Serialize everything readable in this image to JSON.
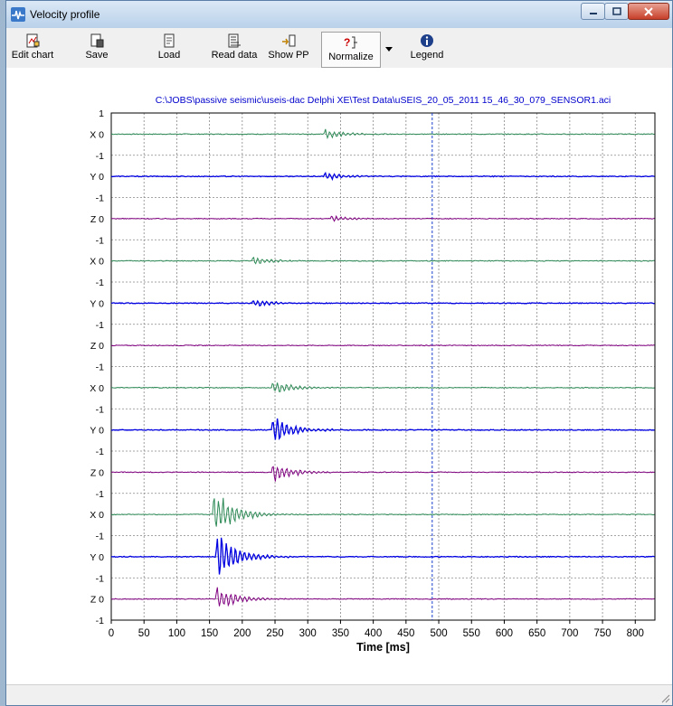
{
  "window": {
    "title": "Velocity profile"
  },
  "toolbar": {
    "buttons": [
      {
        "label": "Edit chart",
        "icon": "edit-chart-icon"
      },
      {
        "label": "Save",
        "icon": "save-icon"
      },
      {
        "label": "Load",
        "icon": "load-icon"
      },
      {
        "label": "Read data",
        "icon": "read-data-icon"
      },
      {
        "label": "Show PP",
        "icon": "show-pp-icon"
      },
      {
        "label": "Normalize",
        "icon": "normalize-icon",
        "pressed": true
      },
      {
        "label": "Legend",
        "icon": "info-icon"
      }
    ]
  },
  "chart_data": {
    "type": "line",
    "title": "C:\\JOBS\\passive seismic\\useis-dac Delphi XE\\Test Data\\uSEIS_20_05_2011 15_46_30_079_SENSOR1.aci",
    "xlabel": "Time [ms]",
    "xlim": [
      0,
      830
    ],
    "xticks": [
      "0",
      "50",
      "100",
      "150",
      "200",
      "250",
      "300",
      "350",
      "400",
      "450",
      "500",
      "550",
      "600",
      "650",
      "700",
      "750",
      "800"
    ],
    "ytick_labels": [
      "1",
      "0",
      "-1"
    ],
    "grid": true,
    "marker_line_x": 490,
    "colors": {
      "X": "#2e8b57",
      "Y": "#0000e0",
      "Z": "#800080"
    },
    "channels": [
      {
        "label": "X",
        "event_start": 325,
        "amplitude": 0.1
      },
      {
        "label": "Y",
        "event_start": 325,
        "amplitude": 0.08
      },
      {
        "label": "Z",
        "event_start": 335,
        "amplitude": 0.06
      },
      {
        "label": "X",
        "event_start": 215,
        "amplitude": 0.08
      },
      {
        "label": "Y",
        "event_start": 215,
        "amplitude": 0.08
      },
      {
        "label": "Z",
        "event_start": 0,
        "amplitude": 0.02
      },
      {
        "label": "X",
        "event_start": 245,
        "amplitude": 0.15
      },
      {
        "label": "Y",
        "event_start": 245,
        "amplitude": 0.3
      },
      {
        "label": "Z",
        "event_start": 245,
        "amplitude": 0.2
      },
      {
        "label": "X",
        "event_start": 155,
        "amplitude": 0.55
      },
      {
        "label": "Y",
        "event_start": 160,
        "amplitude": 0.55
      },
      {
        "label": "Z",
        "event_start": 160,
        "amplitude": 0.25
      }
    ]
  }
}
